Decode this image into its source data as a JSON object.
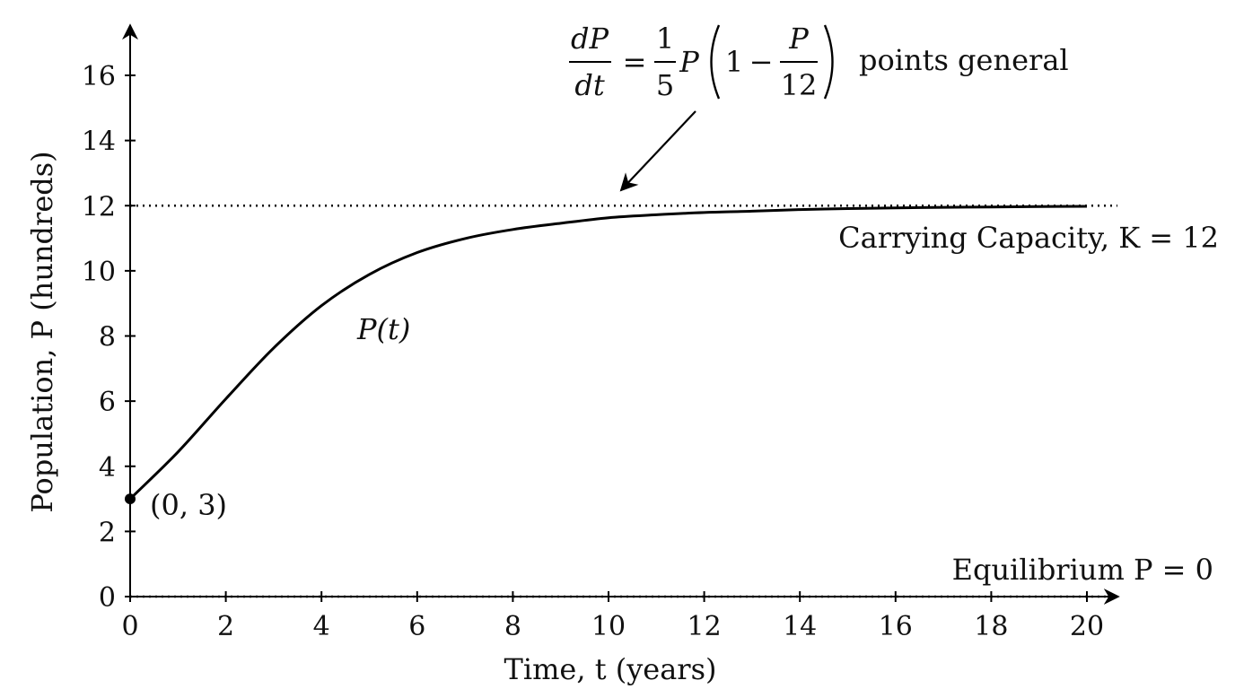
{
  "chart_data": {
    "type": "line",
    "title": "",
    "xlabel": "Time, t (years)",
    "ylabel": "Population, P (hundreds)",
    "xlim": [
      0,
      20
    ],
    "ylim": [
      0,
      16
    ],
    "x_ticks": [
      "0",
      "2",
      "4",
      "6",
      "8",
      "10",
      "12",
      "14",
      "16",
      "18",
      "20"
    ],
    "y_ticks": [
      "0",
      "2",
      "4",
      "6",
      "8",
      "10",
      "12",
      "14",
      "16"
    ],
    "grid": false,
    "series": [
      {
        "name": "P(t)",
        "x": [
          0,
          1,
          2,
          3,
          4,
          5,
          6,
          7,
          8,
          9,
          10,
          11,
          12,
          13,
          14,
          15,
          16,
          17,
          18,
          19,
          20
        ],
        "y": [
          3.0,
          4.44,
          6.07,
          7.63,
          8.93,
          9.89,
          10.56,
          10.99,
          11.27,
          11.46,
          11.63,
          11.72,
          11.79,
          11.83,
          11.88,
          11.91,
          11.93,
          11.95,
          11.96,
          11.97,
          11.98
        ]
      }
    ],
    "reference_lines": [
      {
        "y": 12,
        "style": "dotted",
        "label": "Carrying Capacity, K = 12"
      },
      {
        "y": 0,
        "style": "dotted",
        "label": "Equilibrium P = 0"
      }
    ],
    "points": [
      {
        "x": 0,
        "y": 3,
        "label": "(0, 3)"
      }
    ],
    "annotations": {
      "equation": "dP/dt = 1/5 P (1 − P/12)",
      "equation_suffix": "points general",
      "curve_label": "P(t)"
    },
    "colors": {
      "line": "#000000",
      "text": "#111111"
    }
  }
}
